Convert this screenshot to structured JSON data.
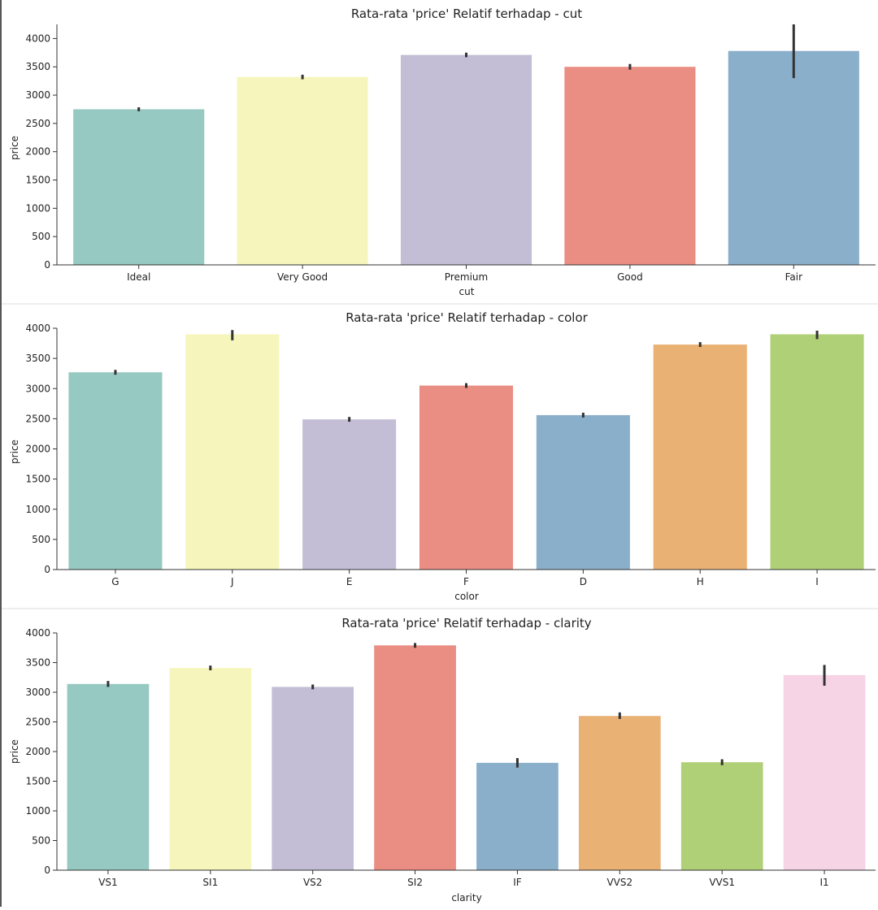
{
  "colors": {
    "palette": [
      "#96c9c1",
      "#f6f6bc",
      "#c3bed6",
      "#ea8d82",
      "#8aafca",
      "#eab175",
      "#b0d078",
      "#f6d3e5"
    ],
    "axis": "#333333",
    "error_bar": "#333333"
  },
  "chart_data": [
    {
      "type": "bar",
      "title": "Rata-rata 'price' Relatif terhadap - cut",
      "xlabel": "cut",
      "ylabel": "price",
      "categories": [
        "Ideal",
        "Very Good",
        "Premium",
        "Good",
        "Fair"
      ],
      "values": [
        2750,
        3320,
        3710,
        3500,
        3780
      ],
      "ci_low": [
        2715,
        3280,
        3670,
        3450,
        3300
      ],
      "ci_high": [
        2785,
        3360,
        3750,
        3550,
        4250
      ],
      "ylim": [
        0,
        4250
      ],
      "yticks": [
        0,
        500,
        1000,
        1500,
        2000,
        2500,
        3000,
        3500,
        4000
      ],
      "grid": false
    },
    {
      "type": "bar",
      "title": "Rata-rata 'price' Relatif terhadap - color",
      "xlabel": "color",
      "ylabel": "price",
      "categories": [
        "G",
        "J",
        "E",
        "F",
        "D",
        "H",
        "I"
      ],
      "values": [
        3270,
        3900,
        2490,
        3050,
        2560,
        3730,
        3900
      ],
      "ci_low": [
        3230,
        3800,
        2450,
        3010,
        2520,
        3690,
        3820
      ],
      "ci_high": [
        3310,
        3970,
        2530,
        3090,
        2600,
        3770,
        3960
      ],
      "ylim": [
        0,
        4000
      ],
      "yticks": [
        0,
        500,
        1000,
        1500,
        2000,
        2500,
        3000,
        3500,
        4000
      ],
      "grid": false
    },
    {
      "type": "bar",
      "title": "Rata-rata 'price' Relatif terhadap - clarity",
      "xlabel": "clarity",
      "ylabel": "price",
      "categories": [
        "VS1",
        "SI1",
        "VS2",
        "SI2",
        "IF",
        "VVS2",
        "VVS1",
        "I1"
      ],
      "values": [
        3140,
        3410,
        3090,
        3790,
        1810,
        2600,
        1820,
        3290
      ],
      "ci_low": [
        3090,
        3370,
        3050,
        3750,
        1730,
        2550,
        1770,
        3110
      ],
      "ci_high": [
        3190,
        3450,
        3130,
        3830,
        1890,
        2660,
        1870,
        3460
      ],
      "ylim": [
        0,
        4000
      ],
      "yticks": [
        0,
        500,
        1000,
        1500,
        2000,
        2500,
        3000,
        3500,
        4000
      ],
      "grid": false
    }
  ]
}
